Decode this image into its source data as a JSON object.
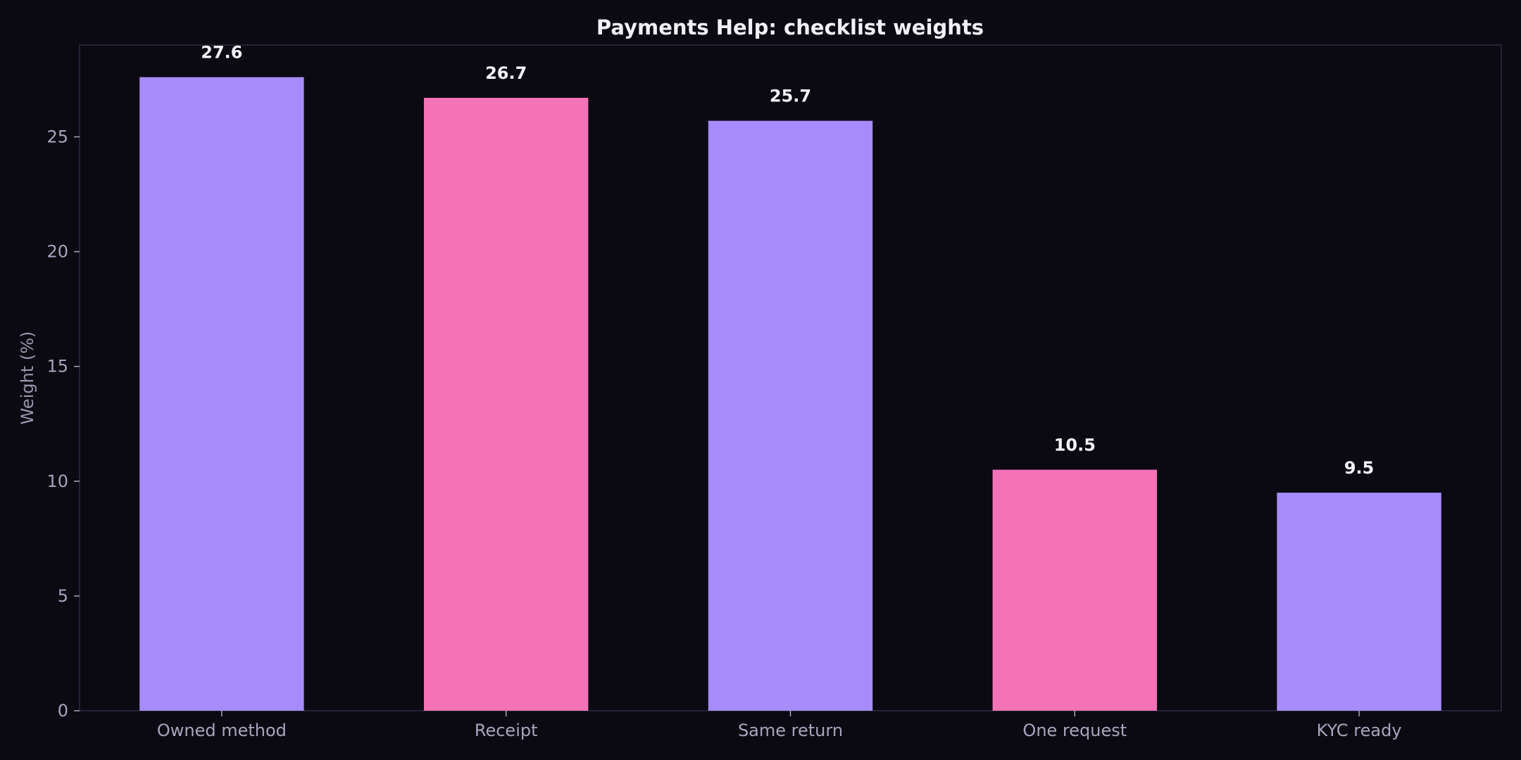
{
  "chart_data": {
    "type": "bar",
    "title": "Payments Help: checklist weights",
    "xlabel": "",
    "ylabel": "Weight (%)",
    "categories": [
      "Owned method",
      "Receipt",
      "Same return",
      "One request",
      "KYC ready"
    ],
    "values": [
      27.6,
      26.7,
      25.7,
      10.5,
      9.5
    ],
    "data_labels": [
      "27.6",
      "26.7",
      "25.7",
      "10.5",
      "9.5"
    ],
    "ylim": [
      0,
      29
    ],
    "yticks": [
      0,
      5,
      10,
      15,
      20,
      25
    ],
    "ytick_labels": [
      "0",
      "5",
      "10",
      "15",
      "20",
      "25"
    ],
    "grid": false,
    "legend": "none",
    "bar_colors": [
      "#a78bfa",
      "#f472b6",
      "#a78bfa",
      "#f472b6",
      "#a78bfa"
    ],
    "background_color": "#0b0a12",
    "frame_color": "#2e2b40"
  }
}
